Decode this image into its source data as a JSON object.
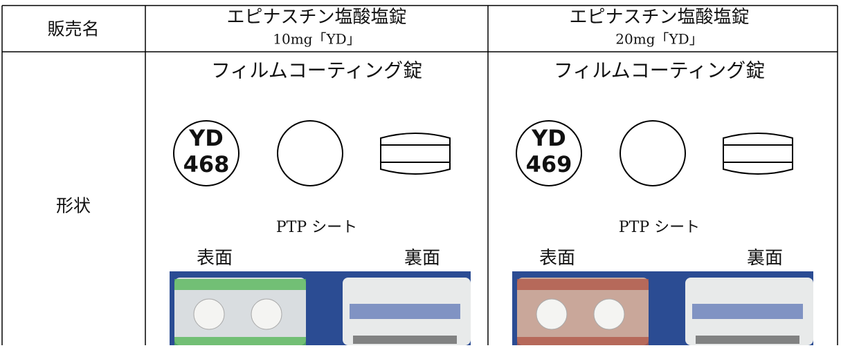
{
  "header": {
    "label": "販売名",
    "products": [
      {
        "name": "エピナスチン塩酸塩錠",
        "strength": "10mg「YD」"
      },
      {
        "name": "エピナスチン塩酸塩錠",
        "strength": "20mg「YD」"
      }
    ]
  },
  "shape_row": {
    "label": "形状",
    "products": [
      {
        "coating": "フィルムコーティング錠",
        "imprint": [
          "YD",
          "468"
        ],
        "ptp_label": "PTP シート",
        "front": "表面",
        "back": "裏面"
      },
      {
        "coating": "フィルムコーティング錠",
        "imprint": [
          "YD",
          "469"
        ],
        "ptp_label": "PTP シート",
        "front": "表面",
        "back": "裏面"
      }
    ]
  }
}
